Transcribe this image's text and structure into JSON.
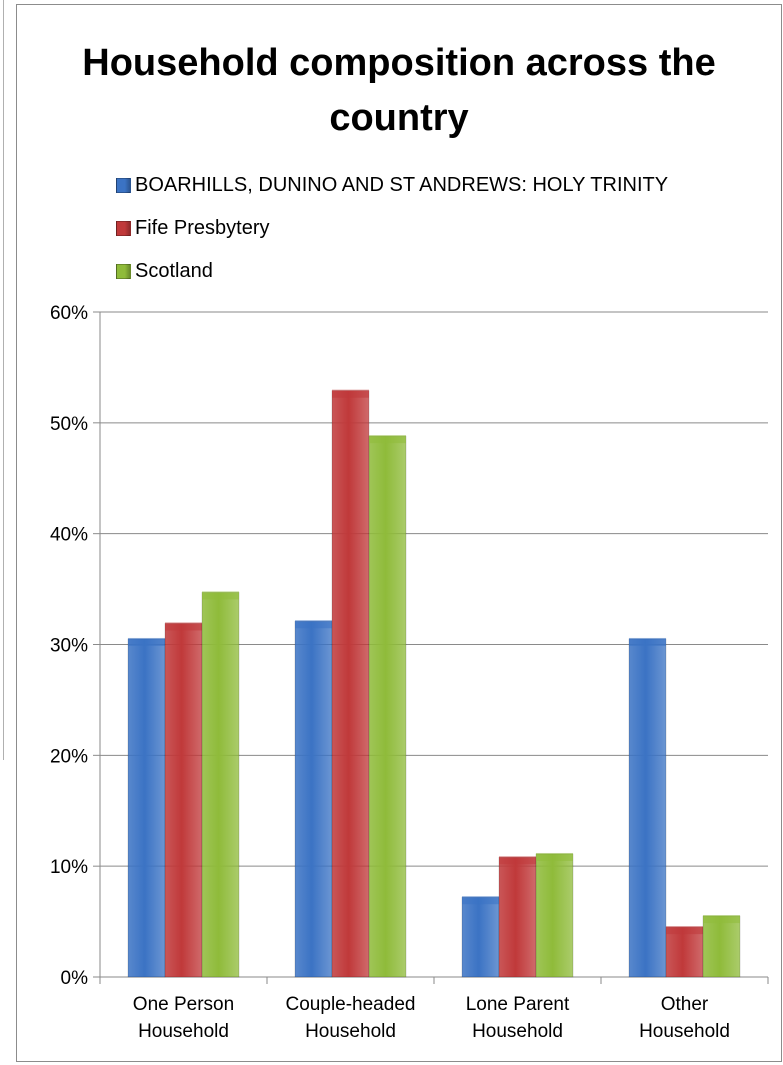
{
  "chart_data": {
    "type": "bar",
    "title": "Household composition across the country",
    "categories": [
      [
        "One Person",
        "Household"
      ],
      [
        "Couple-headed",
        "Household"
      ],
      [
        "Lone Parent",
        "Household"
      ],
      [
        "Other",
        "Household"
      ]
    ],
    "series": [
      {
        "name": "BOARHILLS, DUNINO AND ST ANDREWS: HOLY TRINITY",
        "color": "#3b73c4",
        "values": [
          30.5,
          32.1,
          7.2,
          30.5
        ]
      },
      {
        "name": "Fife Presbytery",
        "color": "#c0393a",
        "values": [
          31.9,
          52.9,
          10.8,
          4.5
        ]
      },
      {
        "name": "Scotland",
        "color": "#8fbb3a",
        "values": [
          34.7,
          48.8,
          11.1,
          5.5
        ]
      }
    ],
    "ylim": [
      0,
      60
    ],
    "yticks": [
      "0%",
      "10%",
      "20%",
      "30%",
      "40%",
      "50%",
      "60%"
    ],
    "xlabel": "",
    "ylabel": "",
    "grid": true,
    "legend_position": "top"
  }
}
